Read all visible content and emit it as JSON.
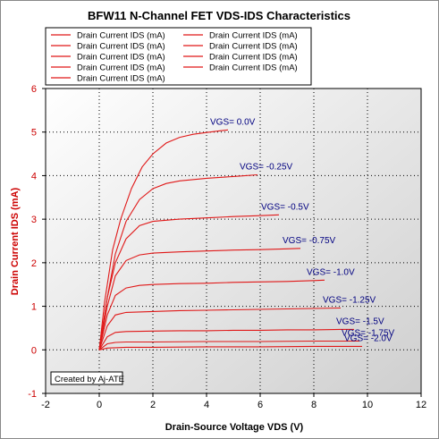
{
  "chart_data": {
    "type": "line",
    "title": "BFW11 N-Channel FET VDS-IDS Characteristics",
    "xlabel": "Drain-Source Voltage VDS (V)",
    "ylabel": "Drain Current IDS (mA)",
    "xlim": [
      -2,
      12
    ],
    "ylim": [
      -1,
      6
    ],
    "xticks": [
      "-2",
      "0",
      "2",
      "4",
      "6",
      "8",
      "10",
      "12"
    ],
    "yticks": [
      "-1",
      "0",
      "1",
      "2",
      "3",
      "4",
      "5",
      "6"
    ],
    "grid": true,
    "legend_position": "top-left",
    "credit": "Created by Aj-ATE",
    "series": [
      {
        "name": "Drain Current IDS (mA)",
        "label": "VGS=  0.0V",
        "x": [
          0,
          0.2,
          0.5,
          0.8,
          1.2,
          1.6,
          2.0,
          2.5,
          3.0,
          3.5,
          4.0,
          4.5,
          4.8
        ],
        "y": [
          0,
          1.1,
          2.3,
          3.0,
          3.7,
          4.2,
          4.5,
          4.75,
          4.88,
          4.95,
          4.99,
          5.03,
          5.05
        ]
      },
      {
        "name": "Drain Current IDS (mA)",
        "label": "VGS=  -0.25V",
        "x": [
          0,
          0.3,
          0.6,
          1.0,
          1.5,
          2.0,
          2.5,
          3.0,
          4.0,
          5.0,
          5.9
        ],
        "y": [
          0,
          1.2,
          2.2,
          2.95,
          3.45,
          3.7,
          3.82,
          3.88,
          3.94,
          3.98,
          4.02
        ]
      },
      {
        "name": "Drain Current IDS (mA)",
        "label": "VGS=  -0.5V",
        "x": [
          0,
          0.3,
          0.6,
          1.0,
          1.5,
          2.0,
          3.0,
          4.0,
          5.0,
          6.0,
          6.7
        ],
        "y": [
          0,
          1.2,
          2.0,
          2.55,
          2.85,
          2.95,
          3.0,
          3.03,
          3.06,
          3.08,
          3.1
        ]
      },
      {
        "name": "Drain Current IDS (mA)",
        "label": "VGS=  -0.75V",
        "x": [
          0,
          0.3,
          0.6,
          1.0,
          1.5,
          2.0,
          3.0,
          4.0,
          5.0,
          6.0,
          7.0,
          7.5
        ],
        "y": [
          0,
          1.0,
          1.7,
          2.05,
          2.18,
          2.22,
          2.25,
          2.27,
          2.29,
          2.3,
          2.32,
          2.33
        ]
      },
      {
        "name": "Drain Current IDS (mA)",
        "label": "VGS=  -1.0V",
        "x": [
          0,
          0.3,
          0.6,
          1.0,
          1.5,
          2.0,
          3.0,
          4.0,
          5.0,
          6.0,
          7.0,
          8.0,
          8.4
        ],
        "y": [
          0,
          0.8,
          1.25,
          1.42,
          1.48,
          1.5,
          1.52,
          1.53,
          1.55,
          1.56,
          1.57,
          1.59,
          1.6
        ]
      },
      {
        "name": "Drain Current IDS (mA)",
        "label": "VGS=  -1.25V",
        "x": [
          0,
          0.3,
          0.6,
          1.0,
          2.0,
          3.0,
          4.0,
          5.0,
          6.0,
          7.0,
          8.0,
          9.0
        ],
        "y": [
          0,
          0.55,
          0.8,
          0.86,
          0.88,
          0.9,
          0.91,
          0.92,
          0.93,
          0.94,
          0.95,
          0.96
        ]
      },
      {
        "name": "Drain Current IDS (mA)",
        "label": "VGS=  -1.5V",
        "x": [
          0,
          0.3,
          0.6,
          1.0,
          2.0,
          3.0,
          4.0,
          5.0,
          6.0,
          7.0,
          8.0,
          9.0,
          9.5
        ],
        "y": [
          0,
          0.3,
          0.4,
          0.42,
          0.43,
          0.44,
          0.44,
          0.45,
          0.45,
          0.46,
          0.46,
          0.47,
          0.47
        ]
      },
      {
        "name": "Drain Current IDS (mA)",
        "label": "VGS=  -1.75V",
        "x": [
          0,
          0.3,
          0.6,
          1.0,
          2.0,
          4.0,
          6.0,
          8.0,
          9.7
        ],
        "y": [
          0,
          0.14,
          0.17,
          0.18,
          0.18,
          0.19,
          0.19,
          0.2,
          0.2
        ]
      },
      {
        "name": "Drain Current IDS (mA)",
        "label": "VGS=  -2.0V",
        "x": [
          0,
          0.3,
          0.6,
          1.0,
          2.0,
          4.0,
          6.0,
          8.0,
          9.8
        ],
        "y": [
          0,
          0.04,
          0.05,
          0.06,
          0.06,
          0.07,
          0.07,
          0.08,
          0.08
        ]
      }
    ],
    "colors": {
      "series": "#e01818",
      "plot_bg_top": "#ffffff",
      "plot_bg_bottom": "#cfcfcf",
      "vgs_label": "#000080",
      "axis_text": "#000000",
      "ylabel_text": "#cc0000",
      "grid": "#000000"
    }
  }
}
